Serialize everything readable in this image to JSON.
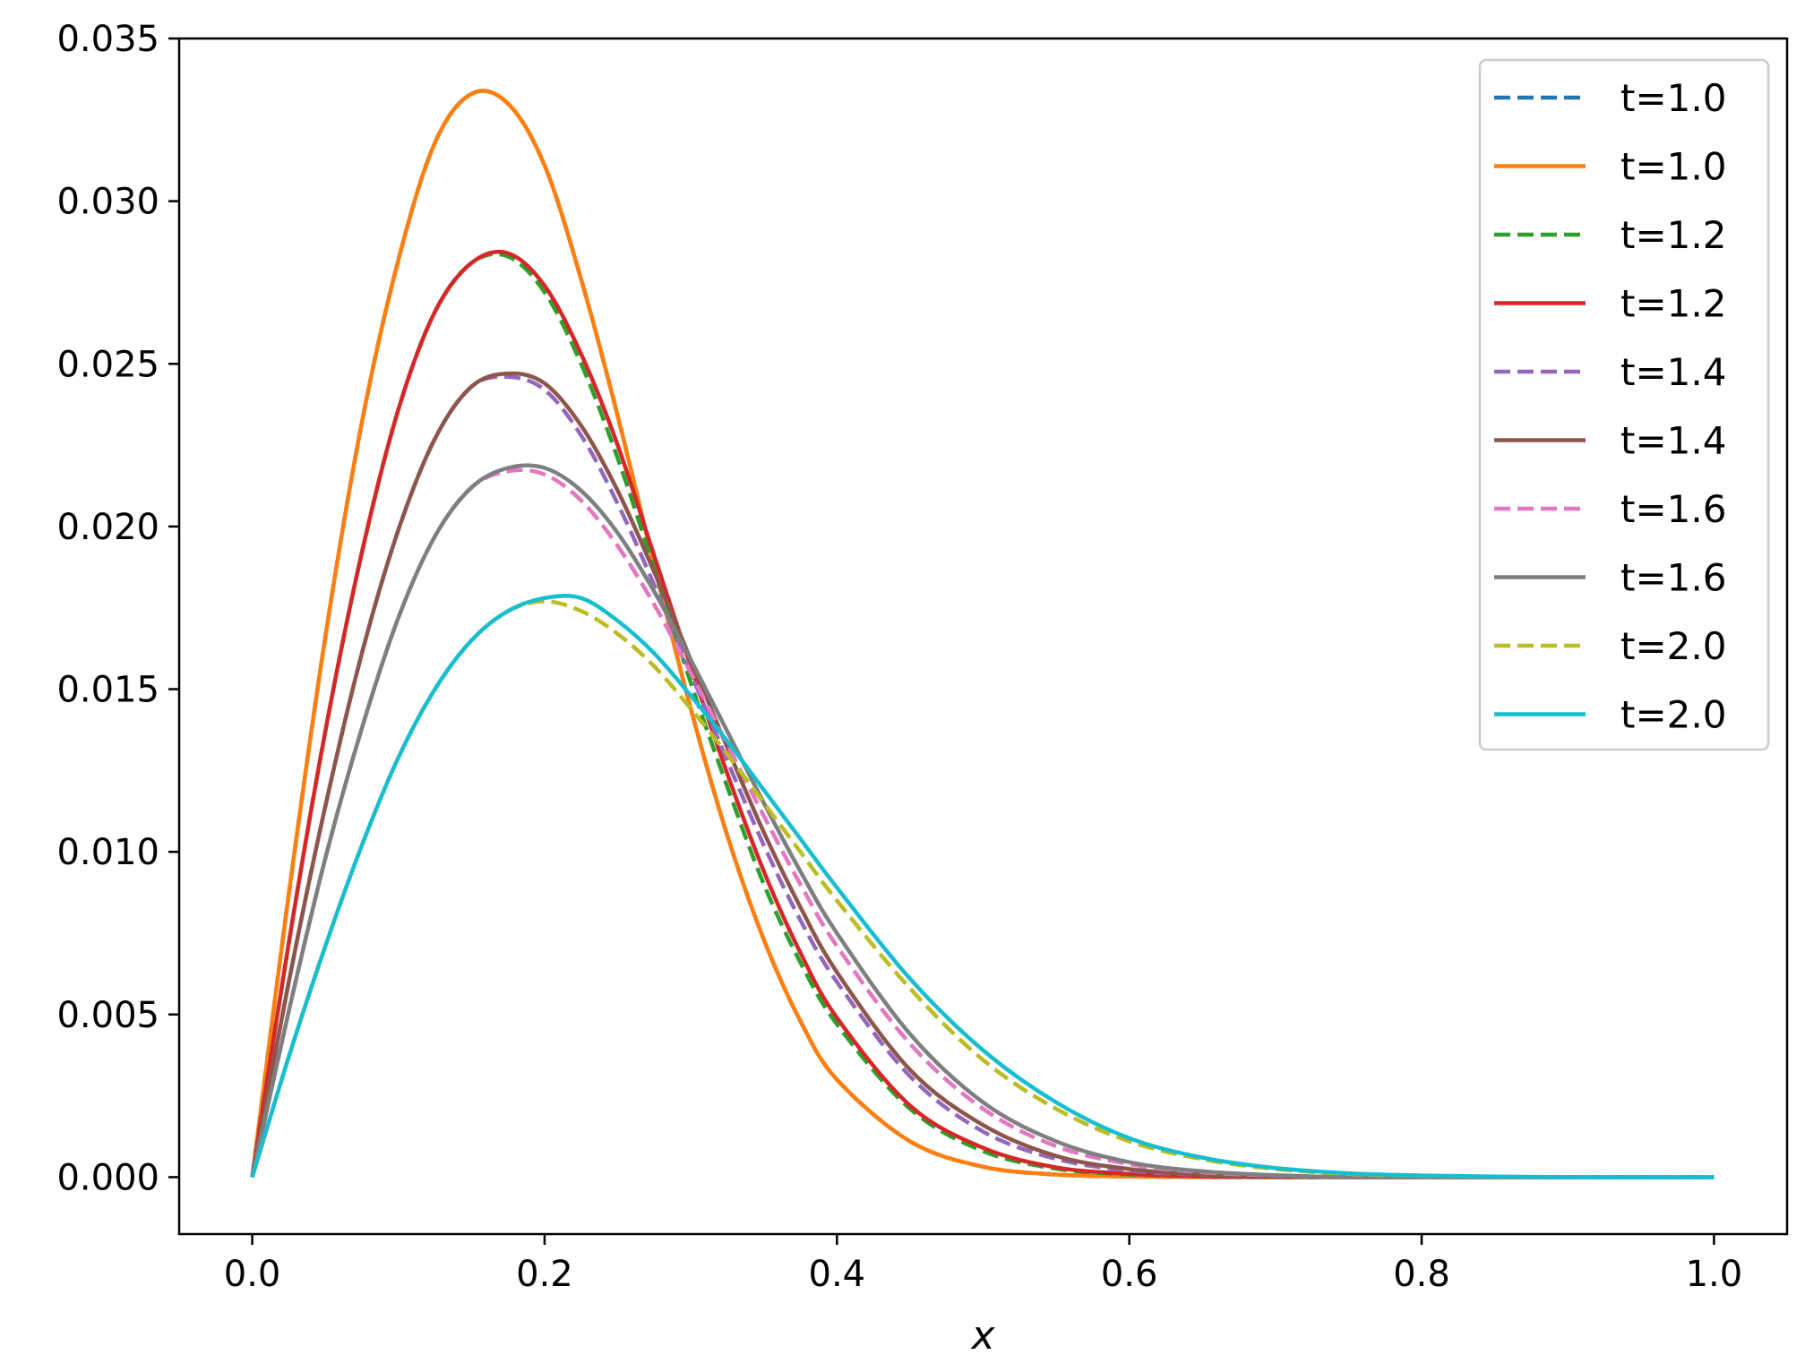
{
  "chart_data": {
    "type": "line",
    "title": "",
    "xlabel": "x",
    "ylabel": "",
    "xlim": [
      -0.05,
      1.05
    ],
    "ylim": [
      -0.00175,
      0.035
    ],
    "xticks": [
      0.0,
      0.2,
      0.4,
      0.6,
      0.8,
      1.0
    ],
    "xtick_labels": [
      "0.0",
      "0.2",
      "0.4",
      "0.6",
      "0.8",
      "1.0"
    ],
    "yticks": [
      0.0,
      0.005,
      0.01,
      0.015,
      0.02,
      0.025,
      0.03,
      0.035
    ],
    "ytick_labels": [
      "0.000",
      "0.005",
      "0.010",
      "0.015",
      "0.020",
      "0.025",
      "0.030",
      "0.035"
    ],
    "grid": false,
    "legend_position": "upper-right",
    "x": [
      0.0,
      0.025,
      0.05,
      0.075,
      0.1,
      0.125,
      0.15,
      0.175,
      0.2,
      0.225,
      0.25,
      0.275,
      0.3,
      0.325,
      0.35,
      0.375,
      0.4,
      0.45,
      0.5,
      0.55,
      0.6,
      0.65,
      0.7,
      0.75,
      0.8,
      0.9,
      1.0
    ],
    "series": [
      {
        "name": "t=1.0",
        "color": "#1f77b4",
        "style": "dashed",
        "values": [
          0.0,
          0.0087,
          0.0166,
          0.0232,
          0.0282,
          0.0318,
          0.0333,
          0.033,
          0.0311,
          0.0276,
          0.0234,
          0.0188,
          0.0144,
          0.0105,
          0.0073,
          0.0048,
          0.003,
          0.0011,
          0.00032,
          8e-05,
          2e-05,
          0.0,
          0.0,
          0.0,
          0.0,
          0.0,
          0.0
        ]
      },
      {
        "name": "t=1.0",
        "color": "#ff7f0e",
        "style": "solid",
        "values": [
          0.0,
          0.0087,
          0.0166,
          0.0232,
          0.0282,
          0.0318,
          0.0333,
          0.033,
          0.0311,
          0.0276,
          0.0234,
          0.0188,
          0.0144,
          0.0105,
          0.0073,
          0.0048,
          0.003,
          0.0011,
          0.00032,
          8e-05,
          2e-05,
          0.0,
          0.0,
          0.0,
          0.0,
          0.0,
          0.0
        ]
      },
      {
        "name": "t=1.2",
        "color": "#2ca02c",
        "style": "dashed",
        "values": [
          0.0,
          0.0072,
          0.0137,
          0.0192,
          0.0236,
          0.0266,
          0.0281,
          0.0283,
          0.0272,
          0.025,
          0.0221,
          0.0187,
          0.0152,
          0.012,
          0.009,
          0.0066,
          0.0047,
          0.0021,
          0.0008,
          0.00026,
          8e-05,
          2e-05,
          0.0,
          0.0,
          0.0,
          0.0,
          0.0
        ]
      },
      {
        "name": "t=1.2",
        "color": "#d62728",
        "style": "solid",
        "values": [
          0.0,
          0.0072,
          0.0137,
          0.0192,
          0.0236,
          0.0266,
          0.0281,
          0.0284,
          0.0274,
          0.0253,
          0.0225,
          0.0191,
          0.0157,
          0.0124,
          0.0094,
          0.0069,
          0.0049,
          0.0022,
          0.0009,
          0.0003,
          0.0001,
          3e-05,
          0.0,
          0.0,
          0.0,
          0.0,
          0.0
        ]
      },
      {
        "name": "t=1.4",
        "color": "#9467bd",
        "style": "dashed",
        "values": [
          0.0,
          0.006,
          0.0114,
          0.0161,
          0.0199,
          0.0227,
          0.0243,
          0.0246,
          0.0242,
          0.0228,
          0.0207,
          0.0182,
          0.0155,
          0.0128,
          0.0102,
          0.0079,
          0.006,
          0.0031,
          0.0014,
          0.00056,
          0.0002,
          7e-05,
          2e-05,
          0.0,
          0.0,
          0.0,
          0.0
        ]
      },
      {
        "name": "t=1.4",
        "color": "#8c564b",
        "style": "solid",
        "values": [
          0.0,
          0.006,
          0.0114,
          0.0161,
          0.0199,
          0.0227,
          0.0243,
          0.0247,
          0.0244,
          0.0231,
          0.0211,
          0.0186,
          0.0159,
          0.0132,
          0.0106,
          0.0083,
          0.0063,
          0.0033,
          0.0016,
          0.00065,
          0.00025,
          8e-05,
          2e-05,
          0.0,
          0.0,
          0.0,
          0.0
        ]
      },
      {
        "name": "t=1.6",
        "color": "#e377c2",
        "style": "dashed",
        "values": [
          0.0,
          0.0051,
          0.0098,
          0.0138,
          0.0172,
          0.0197,
          0.0212,
          0.0217,
          0.0216,
          0.0208,
          0.0194,
          0.0176,
          0.0155,
          0.0133,
          0.0111,
          0.009,
          0.0071,
          0.0041,
          0.0021,
          0.00095,
          0.0004,
          0.00015,
          5e-05,
          0.0,
          0.0,
          0.0,
          0.0
        ]
      },
      {
        "name": "t=1.6",
        "color": "#7f7f7f",
        "style": "solid",
        "values": [
          0.0,
          0.0051,
          0.0098,
          0.0138,
          0.0172,
          0.0197,
          0.0212,
          0.0218,
          0.0218,
          0.0211,
          0.0198,
          0.018,
          0.0159,
          0.0137,
          0.0115,
          0.0094,
          0.0075,
          0.0044,
          0.0023,
          0.0011,
          0.00046,
          0.00018,
          6e-05,
          0.0,
          0.0,
          0.0,
          0.0
        ]
      },
      {
        "name": "t=2.0",
        "color": "#bcbd22",
        "style": "dashed",
        "values": [
          0.0,
          0.0037,
          0.0071,
          0.0102,
          0.0129,
          0.015,
          0.0165,
          0.0174,
          0.0177,
          0.0174,
          0.0167,
          0.0157,
          0.0144,
          0.013,
          0.0115,
          0.01,
          0.0085,
          0.0058,
          0.0036,
          0.0021,
          0.0011,
          0.00055,
          0.00025,
          0.0001,
          4e-05,
          0.0,
          0.0
        ]
      },
      {
        "name": "t=2.0",
        "color": "#17becf",
        "style": "solid",
        "values": [
          0.0,
          0.0037,
          0.0071,
          0.0102,
          0.0129,
          0.015,
          0.0165,
          0.0174,
          0.0178,
          0.0178,
          0.0171,
          0.0161,
          0.0148,
          0.0134,
          0.0119,
          0.0104,
          0.0089,
          0.0061,
          0.0039,
          0.0023,
          0.0012,
          0.0006,
          0.00028,
          0.00012,
          5e-05,
          0.0,
          0.0
        ]
      }
    ]
  }
}
